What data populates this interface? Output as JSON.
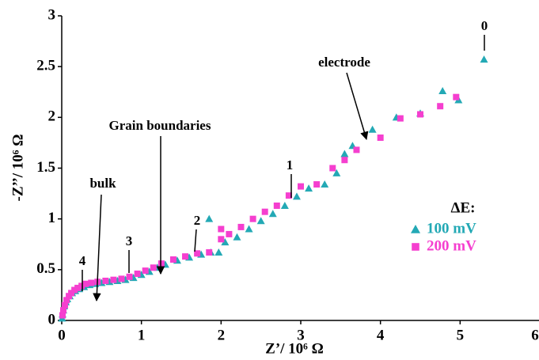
{
  "chart_data": {
    "type": "scatter",
    "xlabel": "Z’/ 10⁶ Ω",
    "ylabel": "-Z’’/ 10⁶ Ω",
    "xlim": [
      0,
      6
    ],
    "ylim": [
      0,
      3
    ],
    "xticks": [
      0,
      1,
      2,
      3,
      4,
      5,
      6
    ],
    "yticks": [
      0,
      0.5,
      1,
      1.5,
      2,
      2.5,
      3
    ],
    "legend_title": "ΔE:",
    "annotations": [
      "0",
      "electrode",
      "Grain boundaries",
      "bulk",
      "1",
      "2",
      "3",
      "4"
    ],
    "series": [
      {
        "name": "100 mV",
        "color": "#23a9b5",
        "marker": "triangle",
        "x": [
          0.005,
          0.01,
          0.02,
          0.03,
          0.05,
          0.07,
          0.1,
          0.13,
          0.17,
          0.22,
          0.28,
          0.35,
          0.42,
          0.5,
          0.6,
          0.7,
          0.8,
          0.9,
          1.0,
          1.1,
          1.2,
          1.3,
          1.45,
          1.6,
          1.75,
          1.85,
          1.87,
          1.97,
          2.05,
          2.2,
          2.35,
          2.5,
          2.65,
          2.8,
          2.95,
          3.1,
          3.3,
          3.45,
          3.55,
          3.65,
          3.9,
          4.2,
          4.5,
          4.78,
          4.98,
          5.3
        ],
        "values": [
          0.02,
          0.06,
          0.1,
          0.14,
          0.18,
          0.21,
          0.24,
          0.27,
          0.29,
          0.31,
          0.33,
          0.35,
          0.36,
          0.37,
          0.38,
          0.39,
          0.4,
          0.42,
          0.45,
          0.48,
          0.52,
          0.55,
          0.59,
          0.62,
          0.65,
          1.0,
          0.67,
          0.67,
          0.77,
          0.82,
          0.9,
          0.98,
          1.05,
          1.13,
          1.22,
          1.3,
          1.34,
          1.45,
          1.64,
          1.72,
          1.88,
          2.0,
          2.04,
          2.26,
          2.17,
          2.57
        ]
      },
      {
        "name": "200 mV",
        "color": "#f53fcf",
        "marker": "square",
        "x": [
          0.01,
          0.02,
          0.04,
          0.06,
          0.09,
          0.12,
          0.16,
          0.2,
          0.25,
          0.3,
          0.37,
          0.45,
          0.55,
          0.65,
          0.75,
          0.85,
          0.95,
          1.05,
          1.15,
          1.25,
          1.4,
          1.55,
          1.7,
          1.85,
          2.0,
          2.0,
          2.1,
          2.25,
          2.4,
          2.55,
          2.7,
          2.85,
          3.0,
          3.2,
          3.4,
          3.55,
          3.7,
          4.0,
          4.25,
          4.5,
          4.75,
          4.95
        ],
        "values": [
          0.05,
          0.1,
          0.15,
          0.2,
          0.24,
          0.27,
          0.3,
          0.32,
          0.34,
          0.36,
          0.37,
          0.38,
          0.39,
          0.4,
          0.41,
          0.43,
          0.46,
          0.49,
          0.52,
          0.56,
          0.6,
          0.63,
          0.66,
          0.67,
          0.9,
          0.8,
          0.85,
          0.92,
          1.0,
          1.07,
          1.13,
          1.23,
          1.32,
          1.34,
          1.5,
          1.58,
          1.68,
          1.8,
          1.99,
          2.03,
          2.11,
          2.2
        ]
      }
    ]
  }
}
